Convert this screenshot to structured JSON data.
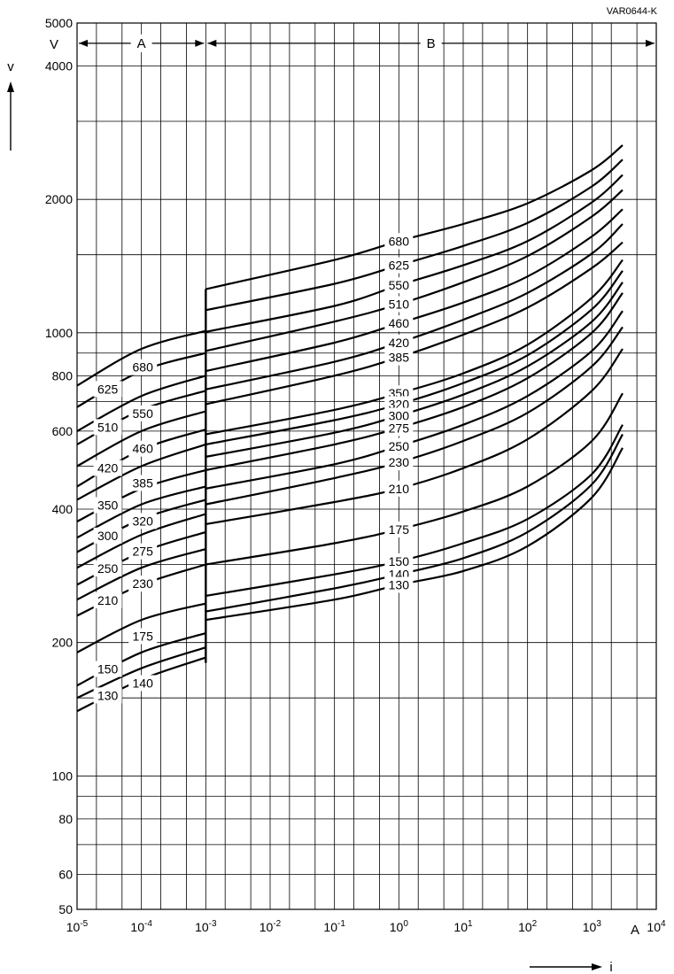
{
  "figure_code": "VAR0644-K",
  "chart_data": {
    "type": "line",
    "title": "",
    "x_axis": {
      "label": "i",
      "unit": "A",
      "scale": "log",
      "range": [
        1e-05,
        10000
      ],
      "tick_labels": [
        "10-5",
        "10-4",
        "10-3",
        "10-2",
        "10-1",
        "100",
        "101",
        "102",
        "103",
        "104"
      ]
    },
    "y_axis": {
      "label": "v",
      "unit": "V",
      "scale": "log",
      "range": [
        50,
        5000
      ],
      "tick_labels": [
        "50",
        "60",
        "80",
        "100",
        "200",
        "400",
        "600",
        "800",
        "1000",
        "2000",
        "4000",
        "5000"
      ]
    },
    "grid": true,
    "regions": [
      {
        "label": "A",
        "x_range": [
          1e-05,
          0.001
        ]
      },
      {
        "label": "B",
        "x_range": [
          0.001,
          10000
        ]
      }
    ],
    "series": [
      {
        "name": "680",
        "region_a": {
          "x": [
            1e-05,
            0.0001,
            0.001
          ],
          "y": [
            760,
            920,
            1010
          ]
        },
        "region_b": {
          "x": [
            0.001,
            0.1,
            1,
            10,
            100,
            1000,
            3000
          ],
          "y": [
            1255,
            1460,
            1610,
            1760,
            1960,
            2330,
            2650
          ]
        }
      },
      {
        "name": "625",
        "region_a": {
          "x": [
            1e-05,
            0.0001,
            0.001
          ],
          "y": [
            680,
            820,
            900
          ]
        },
        "region_b": {
          "x": [
            0.001,
            0.1,
            1,
            10,
            100,
            1000,
            3000
          ],
          "y": [
            1125,
            1290,
            1420,
            1570,
            1770,
            2140,
            2460
          ]
        }
      },
      {
        "name": "550",
        "region_a": {
          "x": [
            1e-05,
            0.0001,
            0.001
          ],
          "y": [
            600,
            720,
            800
          ]
        },
        "region_b": {
          "x": [
            0.001,
            0.1,
            1,
            10,
            100,
            1000,
            3000
          ],
          "y": [
            1005,
            1150,
            1280,
            1420,
            1610,
            1970,
            2270
          ]
        }
      },
      {
        "name": "510",
        "region_a": {
          "x": [
            1e-05,
            0.0001,
            0.001
          ],
          "y": [
            560,
            670,
            740
          ]
        },
        "region_b": {
          "x": [
            0.001,
            0.1,
            1,
            10,
            100,
            1000,
            3000
          ],
          "y": [
            910,
            1060,
            1160,
            1300,
            1490,
            1830,
            2100
          ]
        }
      },
      {
        "name": "460",
        "region_a": {
          "x": [
            1e-05,
            0.0001,
            0.001
          ],
          "y": [
            500,
            600,
            665
          ]
        },
        "region_b": {
          "x": [
            0.001,
            0.1,
            1,
            10,
            100,
            1000,
            3000
          ],
          "y": [
            820,
            950,
            1050,
            1170,
            1340,
            1650,
            1900
          ]
        }
      },
      {
        "name": "420",
        "region_a": {
          "x": [
            1e-05,
            0.0001,
            0.001
          ],
          "y": [
            450,
            545,
            605
          ]
        },
        "region_b": {
          "x": [
            0.001,
            0.1,
            1,
            10,
            100,
            1000,
            3000
          ],
          "y": [
            745,
            860,
            950,
            1070,
            1230,
            1510,
            1760
          ]
        }
      },
      {
        "name": "385",
        "region_a": {
          "x": [
            1e-05,
            0.0001,
            0.001
          ],
          "y": [
            420,
            500,
            560
          ]
        },
        "region_b": {
          "x": [
            0.001,
            0.1,
            1,
            10,
            100,
            1000,
            3000
          ],
          "y": [
            690,
            800,
            880,
            990,
            1140,
            1400,
            1600
          ]
        }
      },
      {
        "name": "350",
        "region_a": {
          "x": [
            1e-05,
            0.0001,
            0.001
          ],
          "y": [
            375,
            445,
            490
          ]
        },
        "region_b": {
          "x": [
            0.001,
            0.1,
            1,
            10,
            100,
            1000,
            3000
          ],
          "y": [
            590,
            670,
            730,
            810,
            940,
            1200,
            1460
          ]
        }
      },
      {
        "name": "320",
        "region_a": {
          "x": [
            1e-05,
            0.0001,
            0.001
          ],
          "y": [
            345,
            410,
            450
          ]
        },
        "region_b": {
          "x": [
            0.001,
            0.1,
            1,
            10,
            100,
            1000,
            3000
          ],
          "y": [
            560,
            635,
            690,
            770,
            890,
            1130,
            1380
          ]
        }
      },
      {
        "name": "300",
        "region_a": {
          "x": [
            1e-05,
            0.0001,
            0.001
          ],
          "y": [
            320,
            380,
            420
          ]
        },
        "region_b": {
          "x": [
            0.001,
            0.1,
            1,
            10,
            100,
            1000,
            3000
          ],
          "y": [
            525,
            595,
            650,
            725,
            840,
            1060,
            1300
          ]
        }
      },
      {
        "name": "275",
        "region_a": {
          "x": [
            1e-05,
            0.0001,
            0.001
          ],
          "y": [
            295,
            350,
            390
          ]
        },
        "region_b": {
          "x": [
            0.001,
            0.1,
            1,
            10,
            100,
            1000,
            3000
          ],
          "y": [
            490,
            560,
            610,
            680,
            790,
            1000,
            1230
          ]
        }
      },
      {
        "name": "250",
        "region_a": {
          "x": [
            1e-05,
            0.0001,
            0.001
          ],
          "y": [
            270,
            320,
            355
          ]
        },
        "region_b": {
          "x": [
            0.001,
            0.1,
            1,
            10,
            100,
            1000,
            3000
          ],
          "y": [
            445,
            505,
            555,
            620,
            720,
            910,
            1120
          ]
        }
      },
      {
        "name": "230",
        "region_a": {
          "x": [
            1e-05,
            0.0001,
            0.001
          ],
          "y": [
            250,
            295,
            325
          ]
        },
        "region_b": {
          "x": [
            0.001,
            0.1,
            1,
            10,
            100,
            1000,
            3000
          ],
          "y": [
            410,
            470,
            510,
            570,
            660,
            840,
            1030
          ]
        }
      },
      {
        "name": "210",
        "region_a": {
          "x": [
            1e-05,
            0.0001,
            0.001
          ],
          "y": [
            230,
            270,
            300
          ]
        },
        "region_b": {
          "x": [
            0.001,
            0.1,
            1,
            10,
            100,
            1000,
            3000
          ],
          "y": [
            370,
            415,
            445,
            495,
            575,
            740,
            920
          ]
        }
      },
      {
        "name": "175",
        "region_a": {
          "x": [
            1e-05,
            0.0001,
            0.001
          ],
          "y": [
            190,
            225,
            245
          ]
        },
        "region_b": {
          "x": [
            0.001,
            0.1,
            1,
            10,
            100,
            1000,
            3000
          ],
          "y": [
            300,
            335,
            360,
            395,
            450,
            570,
            730
          ]
        }
      },
      {
        "name": "150",
        "region_a": {
          "x": [
            1e-05,
            0.0001,
            0.001
          ],
          "y": [
            160,
            190,
            210
          ]
        },
        "region_b": {
          "x": [
            0.001,
            0.1,
            1,
            10,
            100,
            1000,
            3000
          ],
          "y": [
            255,
            285,
            305,
            335,
            380,
            480,
            620
          ]
        }
      },
      {
        "name": "140",
        "region_a": {
          "x": [
            1e-05,
            0.0001,
            0.001
          ],
          "y": [
            150,
            175,
            195
          ]
        },
        "region_b": {
          "x": [
            0.001,
            0.1,
            1,
            10,
            100,
            1000,
            3000
          ],
          "y": [
            235,
            265,
            285,
            310,
            355,
            455,
            590
          ]
        }
      },
      {
        "name": "130",
        "region_a": {
          "x": [
            1e-05,
            0.0001,
            0.001
          ],
          "y": [
            140,
            165,
            185
          ]
        },
        "region_b": {
          "x": [
            0.001,
            0.1,
            1,
            10,
            100,
            1000,
            3000
          ],
          "y": [
            225,
            250,
            270,
            290,
            330,
            425,
            550
          ]
        }
      }
    ]
  }
}
